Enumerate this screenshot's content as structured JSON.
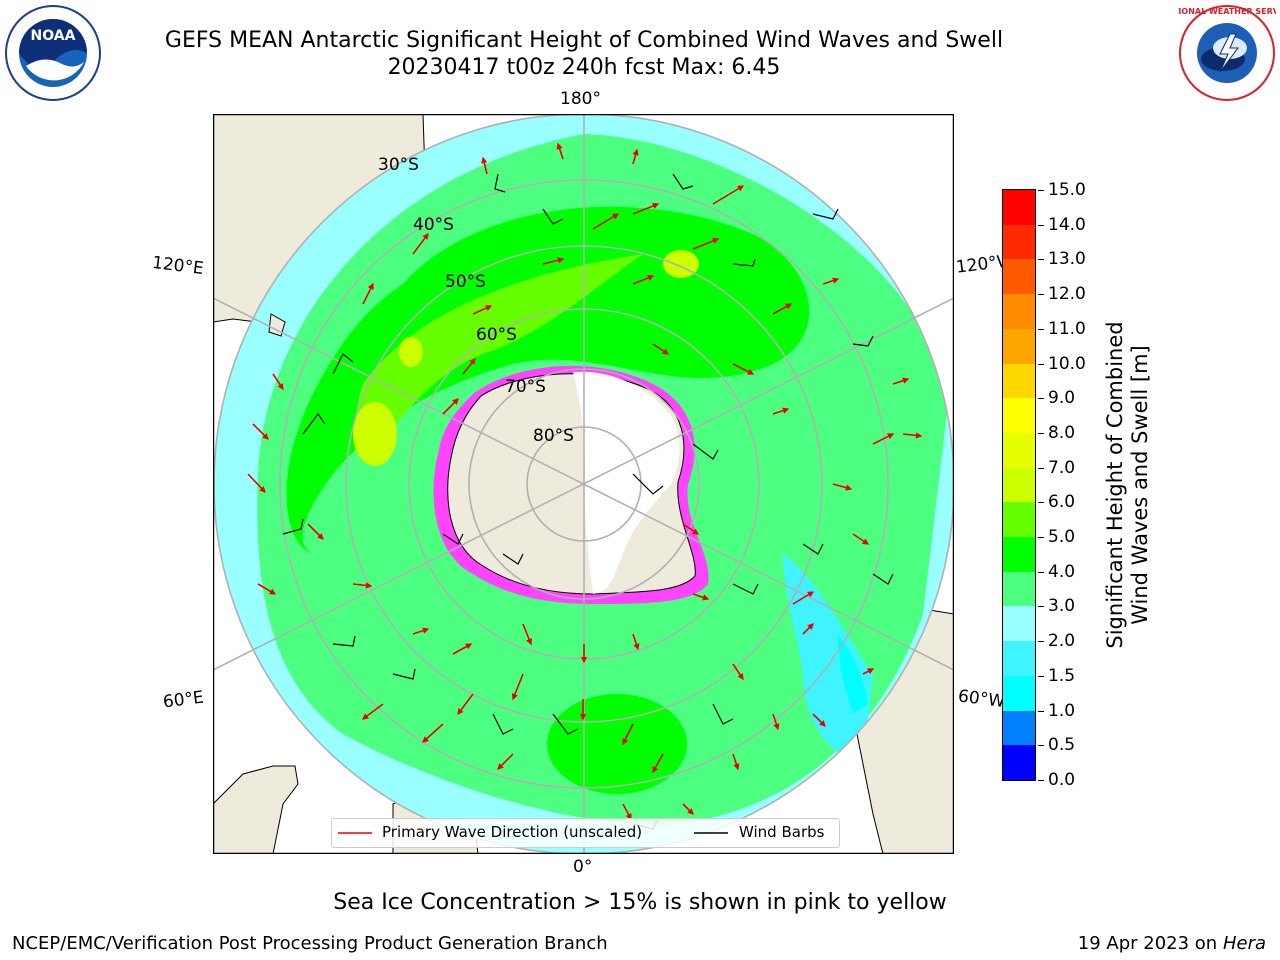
{
  "header": {
    "title_line1": "GEFS MEAN Antarctic Significant Height of Combined Wind Waves and Swell",
    "title_line2": "20230417 t00z 240h fcst   Max: 6.45"
  },
  "logos": {
    "noaa_text": "NOAA",
    "nws_text": "NATIONAL WEATHER SERVICE"
  },
  "map": {
    "longitude_labels": {
      "top": "180°",
      "bottom": "0°",
      "left_upper": "120°E",
      "left_lower": "60°E",
      "right_upper": "120°W",
      "right_lower": "60°W"
    },
    "latitude_labels": [
      "30°S",
      "40°S",
      "50°S",
      "60°S",
      "70°S",
      "80°S"
    ],
    "land_color": "#efebdc",
    "ice_color": "#ff44ff"
  },
  "legend": {
    "wave_direction": "Primary Wave Direction (unscaled)",
    "wind_barbs": "Wind Barbs"
  },
  "colorbar": {
    "label_line1": "Significant Height of Combined",
    "label_line2": "Wind Waves and Swell [m]",
    "ticks": [
      "0.0",
      "0.5",
      "1.0",
      "1.5",
      "2.0",
      "3.0",
      "4.0",
      "5.0",
      "6.0",
      "7.0",
      "8.0",
      "9.0",
      "10.0",
      "11.0",
      "12.0",
      "13.0",
      "14.0",
      "15.0"
    ],
    "colors": [
      "#0000ff",
      "#0080ff",
      "#00ffff",
      "#3ff4ff",
      "#99ffff",
      "#4dff80",
      "#00ff00",
      "#66ff00",
      "#ccff00",
      "#e6ff00",
      "#ffff00",
      "#ffd700",
      "#ffa500",
      "#ff8c00",
      "#ff5a00",
      "#ff2a00",
      "#ff0000"
    ]
  },
  "footer": {
    "note": "Sea Ice Concentration > 15% is shown in pink to yellow",
    "credit": "NCEP/EMC/Verification Post Processing Product Generation Branch",
    "date": "19 Apr 2023 on ",
    "host": "Hera"
  }
}
